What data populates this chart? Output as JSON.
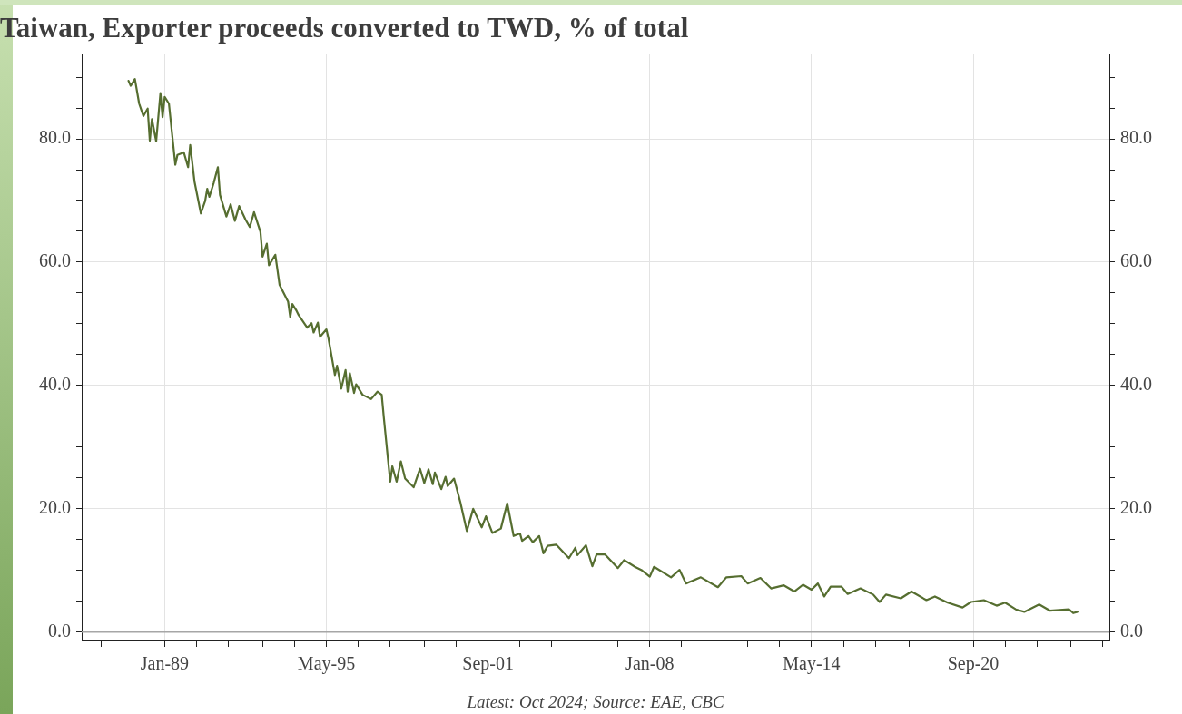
{
  "chart_data": {
    "type": "line",
    "title": "Taiwan, Exporter proceeds converted to TWD, % of total",
    "annotations": [
      "Latest: Oct 2024; Source: EAE, CBC"
    ],
    "x": [
      "1987-08",
      "1987-09",
      "1987-11",
      "1988-01",
      "1988-03",
      "1988-05",
      "1988-06",
      "1988-07",
      "1988-09",
      "1988-11",
      "1988-12",
      "1989-01",
      "1989-03",
      "1989-06",
      "1989-07",
      "1989-10",
      "1989-12",
      "1990-01",
      "1990-03",
      "1990-06",
      "1990-08",
      "1990-09",
      "1990-10",
      "1990-12",
      "1991-02",
      "1991-03",
      "1991-06",
      "1991-08",
      "1991-10",
      "1991-12",
      "1992-03",
      "1992-05",
      "1992-07",
      "1992-10",
      "1992-11",
      "1993-01",
      "1993-02",
      "1993-05",
      "1993-07",
      "1993-11",
      "1993-12",
      "1994-01",
      "1994-03",
      "1994-04",
      "1994-08",
      "1994-10",
      "1994-11",
      "1995-01",
      "1995-02",
      "1995-05",
      "1995-06",
      "1995-09",
      "1995-10",
      "1995-12",
      "1996-02",
      "1996-03",
      "1996-04",
      "1996-06",
      "1996-07",
      "1996-10",
      "1997-02",
      "1997-05",
      "1997-07",
      "1997-08",
      "1997-11",
      "1997-12",
      "1998-02",
      "1998-04",
      "1998-06",
      "1998-10",
      "1999-01",
      "1999-03",
      "1999-05",
      "1999-07",
      "1999-08",
      "1999-11",
      "2000-01",
      "2000-02",
      "2000-05",
      "2000-08",
      "2000-11",
      "2001-02",
      "2001-06",
      "2001-08",
      "2001-11",
      "2002-03",
      "2002-06",
      "2002-09",
      "2002-12",
      "2003-01",
      "2003-04",
      "2003-06",
      "2003-09",
      "2003-11",
      "2004-01",
      "2004-05",
      "2004-11",
      "2005-02",
      "2005-03",
      "2005-07",
      "2005-10",
      "2005-12",
      "2006-04",
      "2006-10",
      "2007-01",
      "2007-06",
      "2007-09",
      "2008-01",
      "2008-03",
      "2008-11",
      "2009-03",
      "2009-06",
      "2010-01",
      "2010-09",
      "2011-01",
      "2011-08",
      "2011-11",
      "2012-05",
      "2012-10",
      "2013-04",
      "2013-09",
      "2014-01",
      "2014-05",
      "2014-08",
      "2014-11",
      "2015-02",
      "2015-07",
      "2015-10",
      "2016-04",
      "2016-10",
      "2017-01",
      "2017-04",
      "2017-11",
      "2018-04",
      "2018-11",
      "2019-03",
      "2019-09",
      "2020-04",
      "2020-08",
      "2021-02",
      "2021-08",
      "2021-12",
      "2022-05",
      "2022-09",
      "2023-04",
      "2023-09",
      "2024-06",
      "2024-08",
      "2024-10"
    ],
    "series": [
      {
        "color": "#566e30",
        "values": [
          89.4,
          88.6,
          89.7,
          85.7,
          83.7,
          84.9,
          79.7,
          83.2,
          79.6,
          87.4,
          83.5,
          86.8,
          85.7,
          75.8,
          77.4,
          77.8,
          75.4,
          79.0,
          73.1,
          67.9,
          69.9,
          71.9,
          70.6,
          72.8,
          75.4,
          70.9,
          67.4,
          69.4,
          66.7,
          69.1,
          66.9,
          65.7,
          68.1,
          64.9,
          60.9,
          63.0,
          59.5,
          61.2,
          56.3,
          53.6,
          51.1,
          53.2,
          52.1,
          51.4,
          49.4,
          50.1,
          48.6,
          50.2,
          47.9,
          49.1,
          47.6,
          41.7,
          43.2,
          39.5,
          42.5,
          39.0,
          42.0,
          38.8,
          40.2,
          38.5,
          37.8,
          39.0,
          38.5,
          34.8,
          24.4,
          26.9,
          24.4,
          27.7,
          24.9,
          23.5,
          26.5,
          24.2,
          26.4,
          24.0,
          25.9,
          23.2,
          25.2,
          23.7,
          24.9,
          21.0,
          16.4,
          20.0,
          17.0,
          18.8,
          16.1,
          16.8,
          20.9,
          15.6,
          16.0,
          14.8,
          15.6,
          14.6,
          15.6,
          12.8,
          14.0,
          14.2,
          12.0,
          13.7,
          12.5,
          14.1,
          10.7,
          12.6,
          12.6,
          10.4,
          11.7,
          10.6,
          10.1,
          9.0,
          10.6,
          8.9,
          10.1,
          7.9,
          8.9,
          7.3,
          8.9,
          9.1,
          7.9,
          8.8,
          7.1,
          7.6,
          6.6,
          7.7,
          6.9,
          7.9,
          5.8,
          7.4,
          7.4,
          6.2,
          7.1,
          6.1,
          4.9,
          6.1,
          5.5,
          6.6,
          5.2,
          5.8,
          4.8,
          4.0,
          4.9,
          5.2,
          4.3,
          4.8,
          3.7,
          3.3,
          4.5,
          3.5,
          3.7,
          3.1,
          3.3
        ]
      }
    ],
    "xlim": [
      "1985-10",
      "2026-01"
    ],
    "xticks": [
      {
        "value": "1986-07",
        "label": null
      },
      {
        "value": "1987-10",
        "label": null
      },
      {
        "value": "1989-01",
        "label": "Jan-89"
      },
      {
        "value": "1990-04",
        "label": null
      },
      {
        "value": "1991-07",
        "label": null
      },
      {
        "value": "1992-11",
        "label": null
      },
      {
        "value": "1994-02",
        "label": null
      },
      {
        "value": "1995-05",
        "label": "May-95"
      },
      {
        "value": "1996-08",
        "label": null
      },
      {
        "value": "1997-11",
        "label": null
      },
      {
        "value": "1999-03",
        "label": null
      },
      {
        "value": "2000-06",
        "label": null
      },
      {
        "value": "2001-09",
        "label": "Sep-01"
      },
      {
        "value": "2002-12",
        "label": null
      },
      {
        "value": "2004-03",
        "label": null
      },
      {
        "value": "2005-07",
        "label": null
      },
      {
        "value": "2006-10",
        "label": null
      },
      {
        "value": "2008-01",
        "label": "Jan-08"
      },
      {
        "value": "2009-04",
        "label": null
      },
      {
        "value": "2010-07",
        "label": null
      },
      {
        "value": "2011-11",
        "label": null
      },
      {
        "value": "2013-02",
        "label": null
      },
      {
        "value": "2014-05",
        "label": "May-14"
      },
      {
        "value": "2015-08",
        "label": null
      },
      {
        "value": "2016-11",
        "label": null
      },
      {
        "value": "2018-03",
        "label": null
      },
      {
        "value": "2019-06",
        "label": null
      },
      {
        "value": "2020-09",
        "label": "Sep-20"
      },
      {
        "value": "2021-12",
        "label": null
      },
      {
        "value": "2023-03",
        "label": null
      },
      {
        "value": "2024-07",
        "label": null
      },
      {
        "value": "2025-10",
        "label": null
      }
    ],
    "ylim": [
      -1.2,
      93.8
    ],
    "yticks": [
      {
        "value": 0,
        "label": "0.0"
      },
      {
        "value": 5,
        "label": null
      },
      {
        "value": 10,
        "label": null
      },
      {
        "value": 15,
        "label": null
      },
      {
        "value": 20,
        "label": "20.0"
      },
      {
        "value": 25,
        "label": null
      },
      {
        "value": 30,
        "label": null
      },
      {
        "value": 35,
        "label": null
      },
      {
        "value": 40,
        "label": "40.0"
      },
      {
        "value": 45,
        "label": null
      },
      {
        "value": 50,
        "label": null
      },
      {
        "value": 55,
        "label": null
      },
      {
        "value": 60,
        "label": "60.0"
      },
      {
        "value": 65,
        "label": null
      },
      {
        "value": 70,
        "label": null
      },
      {
        "value": 75,
        "label": null
      },
      {
        "value": 80,
        "label": "80.0"
      },
      {
        "value": 85,
        "label": null
      },
      {
        "value": 90,
        "label": null
      }
    ],
    "y2lim": [
      -1.2,
      93.8
    ],
    "y2ticks": [
      {
        "value": 0,
        "label": "0.0"
      },
      {
        "value": 5,
        "label": null
      },
      {
        "value": 10,
        "label": null
      },
      {
        "value": 15,
        "label": null
      },
      {
        "value": 20,
        "label": "20.0"
      },
      {
        "value": 25,
        "label": null
      },
      {
        "value": 30,
        "label": null
      },
      {
        "value": 35,
        "label": null
      },
      {
        "value": 40,
        "label": "40.0"
      },
      {
        "value": 45,
        "label": null
      },
      {
        "value": 50,
        "label": null
      },
      {
        "value": 55,
        "label": null
      },
      {
        "value": 60,
        "label": "60.0"
      },
      {
        "value": 65,
        "label": null
      },
      {
        "value": 70,
        "label": null
      },
      {
        "value": 75,
        "label": null
      },
      {
        "value": 80,
        "label": "80.0"
      },
      {
        "value": 85,
        "label": null
      },
      {
        "value": 90,
        "label": null
      }
    ],
    "ref_lines": [
      {
        "axis": "y",
        "value": 0,
        "color": "#a6a6a6"
      }
    ],
    "grid": true,
    "legend": false,
    "marker": "none",
    "line_style": "solid"
  }
}
